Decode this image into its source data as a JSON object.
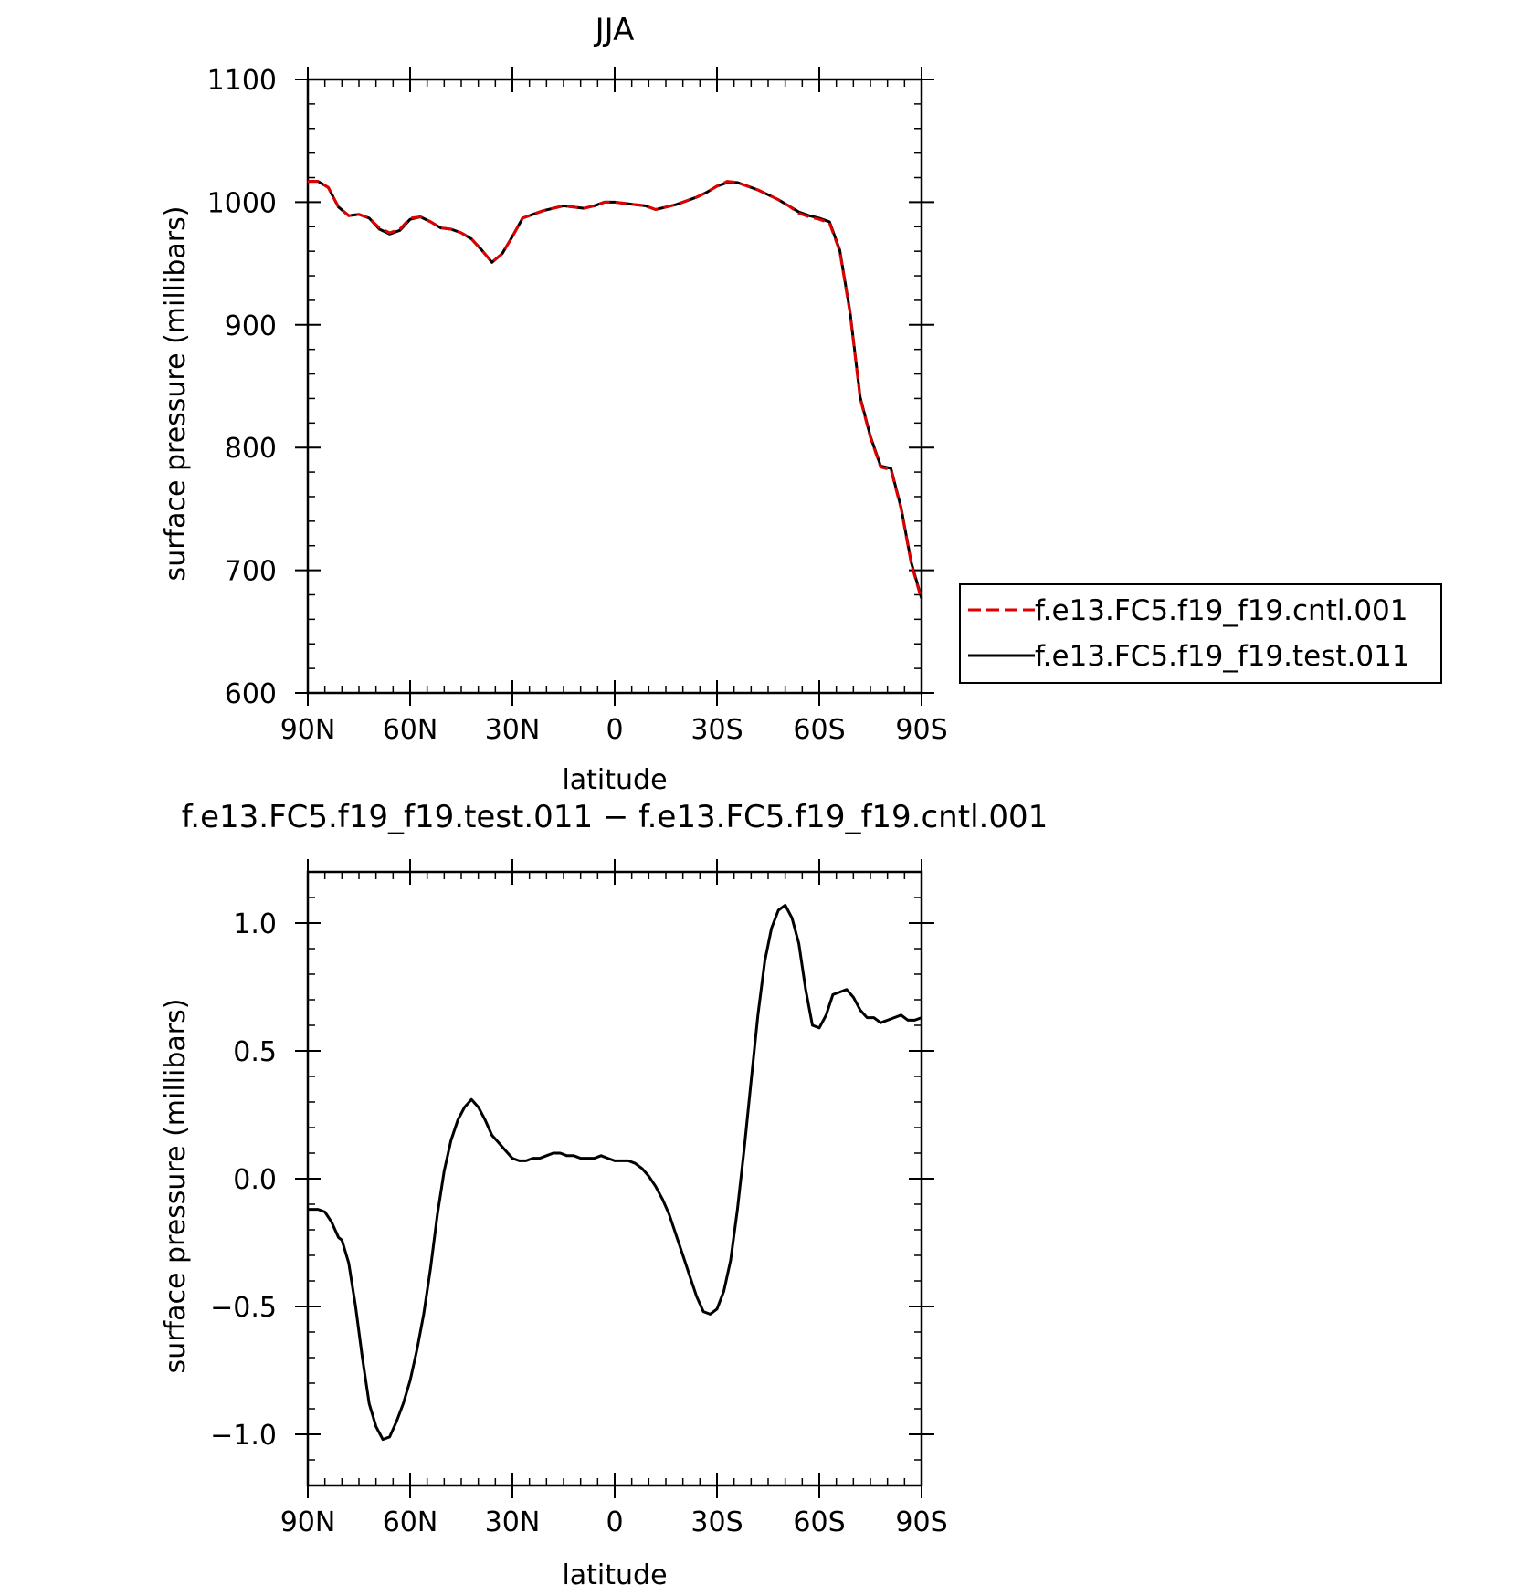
{
  "chart_data": [
    {
      "type": "line",
      "title": "JJA",
      "xlabel": "latitude",
      "ylabel": "surface pressure (millibars)",
      "xlim": [
        90,
        -90
      ],
      "ylim": [
        600,
        1100
      ],
      "xticks": [
        {
          "value": 90,
          "label": "90N"
        },
        {
          "value": 60,
          "label": "60N"
        },
        {
          "value": 30,
          "label": "30N"
        },
        {
          "value": 0,
          "label": "0"
        },
        {
          "value": -30,
          "label": "30S"
        },
        {
          "value": -60,
          "label": "60S"
        },
        {
          "value": -90,
          "label": "90S"
        }
      ],
      "yticks": [
        {
          "value": 600,
          "label": "600"
        },
        {
          "value": 700,
          "label": "700"
        },
        {
          "value": 800,
          "label": "800"
        },
        {
          "value": 900,
          "label": "900"
        },
        {
          "value": 1000,
          "label": "1000"
        },
        {
          "value": 1100,
          "label": "1100"
        }
      ],
      "legend": "right",
      "grid": false,
      "series": [
        {
          "name": "f.e13.FC5.f19_f19.cntl.001",
          "color": "#e00000",
          "dash": "dashed",
          "x": [
            90,
            87,
            84,
            81,
            78,
            75,
            72,
            69,
            66,
            63,
            60,
            57,
            54,
            51,
            48,
            45,
            42,
            39,
            36,
            33,
            30,
            27,
            24,
            21,
            18,
            15,
            12,
            9,
            6,
            3,
            0,
            -3,
            -6,
            -9,
            -12,
            -15,
            -18,
            -21,
            -24,
            -27,
            -30,
            -33,
            -36,
            -39,
            -42,
            -45,
            -48,
            -51,
            -54,
            -57,
            -60,
            -63,
            -66,
            -69,
            -72,
            -75,
            -78,
            -81,
            -84,
            -87,
            -90
          ],
          "y": [
            1017,
            1017,
            1012,
            996,
            989,
            990,
            987,
            979,
            975,
            978,
            987,
            988,
            984,
            979,
            978,
            975,
            970,
            961,
            951,
            958,
            972,
            987,
            990,
            993,
            995,
            997,
            996,
            995,
            997,
            1000,
            1000,
            999,
            998,
            997,
            994,
            996,
            998,
            1001,
            1004,
            1008,
            1013,
            1017,
            1016,
            1013,
            1010,
            1006,
            1002,
            997,
            991,
            988,
            986,
            983,
            960,
            910,
            840,
            808,
            784,
            782,
            750,
            705,
            676
          ]
        },
        {
          "name": "f.e13.FC5.f19_f19.test.011",
          "color": "#000000",
          "dash": "solid",
          "x": [
            90,
            87,
            84,
            81,
            78,
            75,
            72,
            69,
            66,
            63,
            60,
            57,
            54,
            51,
            48,
            45,
            42,
            39,
            36,
            33,
            30,
            27,
            24,
            21,
            18,
            15,
            12,
            9,
            6,
            3,
            0,
            -3,
            -6,
            -9,
            -12,
            -15,
            -18,
            -21,
            -24,
            -27,
            -30,
            -33,
            -36,
            -39,
            -42,
            -45,
            -48,
            -51,
            -54,
            -57,
            -60,
            -63,
            -66,
            -69,
            -72,
            -75,
            -78,
            -81,
            -84,
            -87,
            -90
          ],
          "y": [
            1017,
            1017,
            1012,
            996,
            989,
            990,
            987,
            978,
            974,
            977,
            986,
            988,
            984,
            979,
            978,
            975,
            970,
            961,
            951,
            958,
            972,
            987,
            990,
            993,
            995,
            997,
            996,
            995,
            997,
            1000,
            1000,
            999,
            998,
            997,
            994,
            996,
            998,
            1001,
            1004,
            1008,
            1013,
            1016,
            1016,
            1013,
            1010,
            1006,
            1002,
            997,
            992,
            989,
            987,
            984,
            961,
            911,
            841,
            809,
            785,
            783,
            751,
            706,
            677
          ]
        }
      ]
    },
    {
      "type": "line",
      "title": "f.e13.FC5.f19_f19.test.011 - f.e13.FC5.f19_f19.cntl.001",
      "xlabel": "latitude",
      "ylabel": "surface pressure (millibars)",
      "xlim": [
        90,
        -90
      ],
      "ylim": [
        -1.2,
        1.2
      ],
      "xticks": [
        {
          "value": 90,
          "label": "90N"
        },
        {
          "value": 60,
          "label": "60N"
        },
        {
          "value": 30,
          "label": "30N"
        },
        {
          "value": 0,
          "label": "0"
        },
        {
          "value": -30,
          "label": "30S"
        },
        {
          "value": -60,
          "label": "60S"
        },
        {
          "value": -90,
          "label": "90S"
        }
      ],
      "yticks": [
        {
          "value": -1.0,
          "label": "-1.0"
        },
        {
          "value": -0.5,
          "label": "-0.5"
        },
        {
          "value": 0.0,
          "label": "0.0"
        },
        {
          "value": 0.5,
          "label": "0.5"
        },
        {
          "value": 1.0,
          "label": "1.0"
        }
      ],
      "grid": false,
      "series": [
        {
          "color": "#000000",
          "dash": "solid",
          "x": [
            90,
            87,
            85,
            83,
            81,
            80,
            78,
            76,
            74,
            72,
            70,
            68,
            66,
            64,
            62,
            60,
            58,
            56,
            54,
            52,
            50,
            48,
            46,
            44,
            42,
            40,
            38,
            36,
            34,
            32,
            30,
            28,
            26,
            24,
            22,
            20,
            18,
            16,
            14,
            12,
            10,
            8,
            6,
            4,
            2,
            0,
            -2,
            -4,
            -6,
            -8,
            -10,
            -12,
            -14,
            -16,
            -18,
            -20,
            -22,
            -24,
            -26,
            -28,
            -30,
            -32,
            -34,
            -36,
            -38,
            -40,
            -42,
            -44,
            -46,
            -48,
            -50,
            -52,
            -54,
            -56,
            -58,
            -60,
            -62,
            -64,
            -66,
            -68,
            -70,
            -72,
            -74,
            -76,
            -78,
            -80,
            -82,
            -84,
            -86,
            -88,
            -90
          ],
          "y": [
            -0.12,
            -0.12,
            -0.13,
            -0.17,
            -0.23,
            -0.24,
            -0.33,
            -0.5,
            -0.7,
            -0.88,
            -0.97,
            -1.02,
            -1.01,
            -0.95,
            -0.88,
            -0.79,
            -0.67,
            -0.53,
            -0.35,
            -0.14,
            0.03,
            0.15,
            0.23,
            0.28,
            0.31,
            0.28,
            0.23,
            0.17,
            0.14,
            0.11,
            0.08,
            0.07,
            0.07,
            0.08,
            0.08,
            0.09,
            0.1,
            0.1,
            0.09,
            0.09,
            0.08,
            0.08,
            0.08,
            0.09,
            0.08,
            0.07,
            0.07,
            0.07,
            0.06,
            0.04,
            0.01,
            -0.03,
            -0.08,
            -0.14,
            -0.22,
            -0.3,
            -0.38,
            -0.46,
            -0.52,
            -0.53,
            -0.51,
            -0.44,
            -0.32,
            -0.12,
            0.12,
            0.38,
            0.64,
            0.85,
            0.98,
            1.05,
            1.07,
            1.02,
            0.92,
            0.74,
            0.6,
            0.59,
            0.64,
            0.72,
            0.73,
            0.74,
            0.71,
            0.66,
            0.63,
            0.63,
            0.61,
            0.62,
            0.63,
            0.64,
            0.62,
            0.62,
            0.63
          ]
        }
      ]
    }
  ]
}
